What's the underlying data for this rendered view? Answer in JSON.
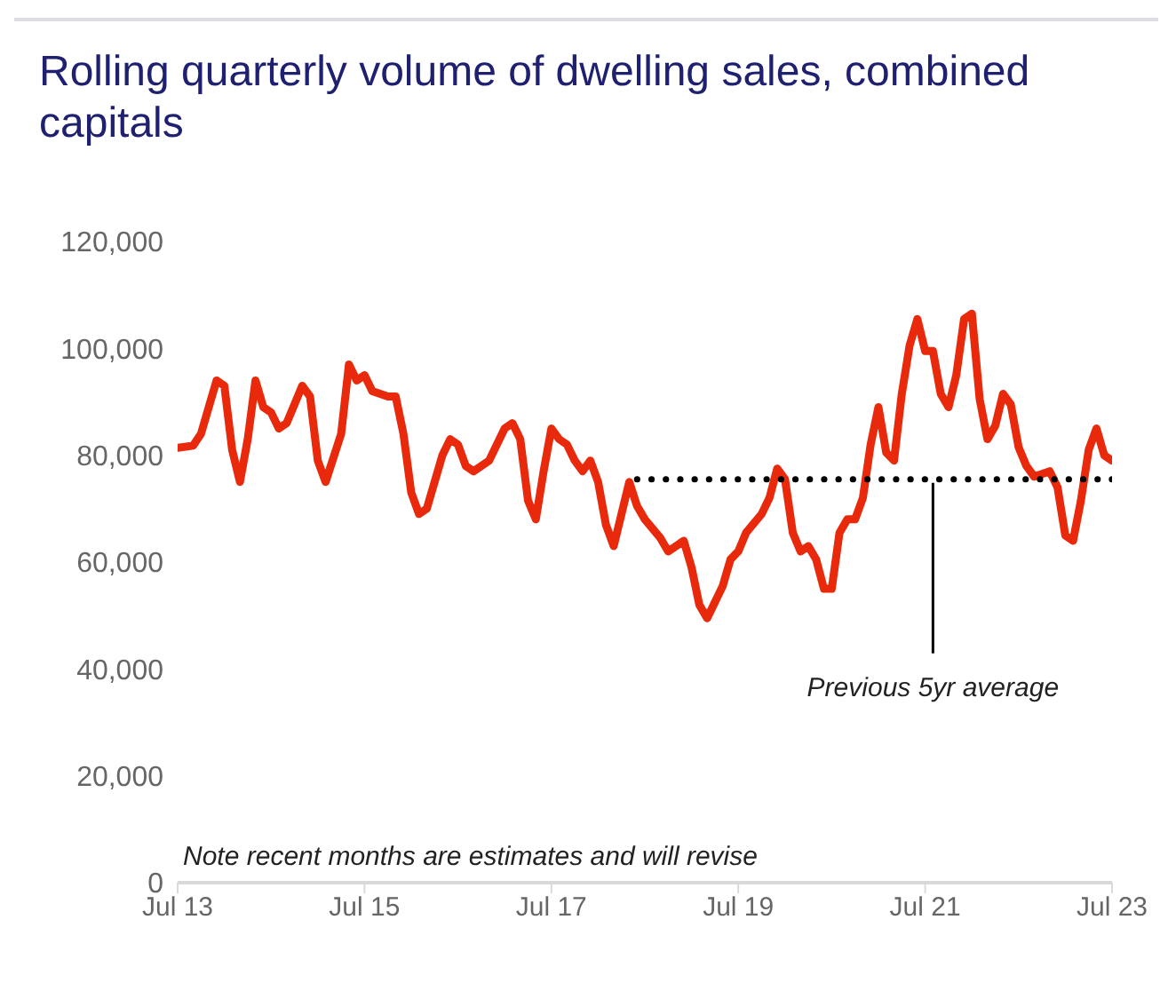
{
  "chart_data": {
    "type": "line",
    "title": "Rolling quarterly volume of dwelling sales, combined capitals",
    "xlim": [
      "2013-07",
      "2023-07"
    ],
    "xticks": [
      {
        "value": "2013-07",
        "label": "Jul 13"
      },
      {
        "value": "2015-07",
        "label": "Jul 15"
      },
      {
        "value": "2017-07",
        "label": "Jul 17"
      },
      {
        "value": "2019-07",
        "label": "Jul 19"
      },
      {
        "value": "2021-07",
        "label": "Jul 21"
      },
      {
        "value": "2023-07",
        "label": "Jul 23"
      }
    ],
    "ylim": [
      0,
      120000
    ],
    "yticks": [
      0,
      {
        "value": 20000,
        "label": "20,000"
      },
      {
        "value": 40000,
        "label": "40,000"
      },
      {
        "value": 60000,
        "label": "60,000"
      },
      {
        "value": 80000,
        "label": "80,000"
      },
      {
        "value": 100000,
        "label": "100,000"
      },
      {
        "value": 120000,
        "label": "120,000"
      }
    ],
    "grid": false,
    "marker": "none",
    "series": [
      {
        "color": "#e8290b",
        "line_style": "solid",
        "x": [
          "2013-07",
          "2013-09",
          "2013-10",
          "2013-11",
          "2013-12",
          "2014-01",
          "2014-02",
          "2014-03",
          "2014-04",
          "2014-05",
          "2014-06",
          "2014-07",
          "2014-08",
          "2014-09",
          "2014-11",
          "2014-12",
          "2015-01",
          "2015-02",
          "2015-04",
          "2015-05",
          "2015-06",
          "2015-07",
          "2015-08",
          "2015-10",
          "2015-11",
          "2015-12",
          "2016-01",
          "2016-02",
          "2016-03",
          "2016-05",
          "2016-06",
          "2016-07",
          "2016-08",
          "2016-09",
          "2016-11",
          "2017-01",
          "2017-02",
          "2017-03",
          "2017-04",
          "2017-05",
          "2017-06",
          "2017-07",
          "2017-08",
          "2017-09",
          "2017-10",
          "2017-11",
          "2017-12",
          "2018-01",
          "2018-02",
          "2018-03",
          "2018-04",
          "2018-05",
          "2018-06",
          "2018-07",
          "2018-09",
          "2018-10",
          "2018-11",
          "2018-12",
          "2019-01",
          "2019-02",
          "2019-03",
          "2019-05",
          "2019-06",
          "2019-07",
          "2019-08",
          "2019-10",
          "2019-11",
          "2019-12",
          "2020-01",
          "2020-02",
          "2020-03",
          "2020-04",
          "2020-05",
          "2020-06",
          "2020-07",
          "2020-08",
          "2020-09",
          "2020-10",
          "2020-11",
          "2020-12",
          "2021-01",
          "2021-02",
          "2021-03",
          "2021-04",
          "2021-05",
          "2021-06",
          "2021-07",
          "2021-08",
          "2021-09",
          "2021-10",
          "2021-11",
          "2021-12",
          "2022-01",
          "2022-02",
          "2022-03",
          "2022-04",
          "2022-05",
          "2022-06",
          "2022-07",
          "2022-08",
          "2022-09",
          "2022-11",
          "2022-12",
          "2023-01",
          "2023-02",
          "2023-03",
          "2023-04",
          "2023-05",
          "2023-06",
          "2023-07"
        ],
        "values": [
          81400,
          81800,
          84000,
          89000,
          94000,
          93000,
          81000,
          75000,
          83000,
          94000,
          89000,
          88000,
          85000,
          86000,
          93000,
          91000,
          79000,
          75000,
          84000,
          97000,
          94000,
          95000,
          92000,
          91000,
          91000,
          84000,
          73000,
          69000,
          70000,
          80000,
          83000,
          82000,
          78000,
          77000,
          79000,
          85000,
          86000,
          83000,
          71500,
          68000,
          77000,
          85000,
          83000,
          82000,
          79000,
          77000,
          79000,
          75000,
          67000,
          63000,
          69000,
          75000,
          70500,
          68000,
          64500,
          62000,
          63000,
          64000,
          59000,
          52000,
          49500,
          55500,
          60500,
          62000,
          65500,
          69000,
          72000,
          77500,
          75500,
          65500,
          62000,
          63000,
          60500,
          55000,
          55000,
          65500,
          68000,
          68000,
          72000,
          82000,
          89000,
          80500,
          79000,
          91500,
          100500,
          105500,
          99500,
          99500,
          91500,
          89000,
          95000,
          105500,
          106500,
          90500,
          83000,
          85500,
          91500,
          89500,
          81500,
          78000,
          76000,
          77000,
          74000,
          65000,
          64000,
          71500,
          81000,
          85000,
          80000,
          79000
        ]
      },
      {
        "color": "#000000",
        "line_style": "dotted",
        "x": [
          "2018-06",
          "2023-07"
        ],
        "values": [
          75500,
          75500
        ]
      }
    ],
    "annotations": [
      {
        "text": "Previous 5yr average",
        "x": "2021-08",
        "y": 75500
      },
      "Note recent months are estimates and will revise"
    ]
  }
}
